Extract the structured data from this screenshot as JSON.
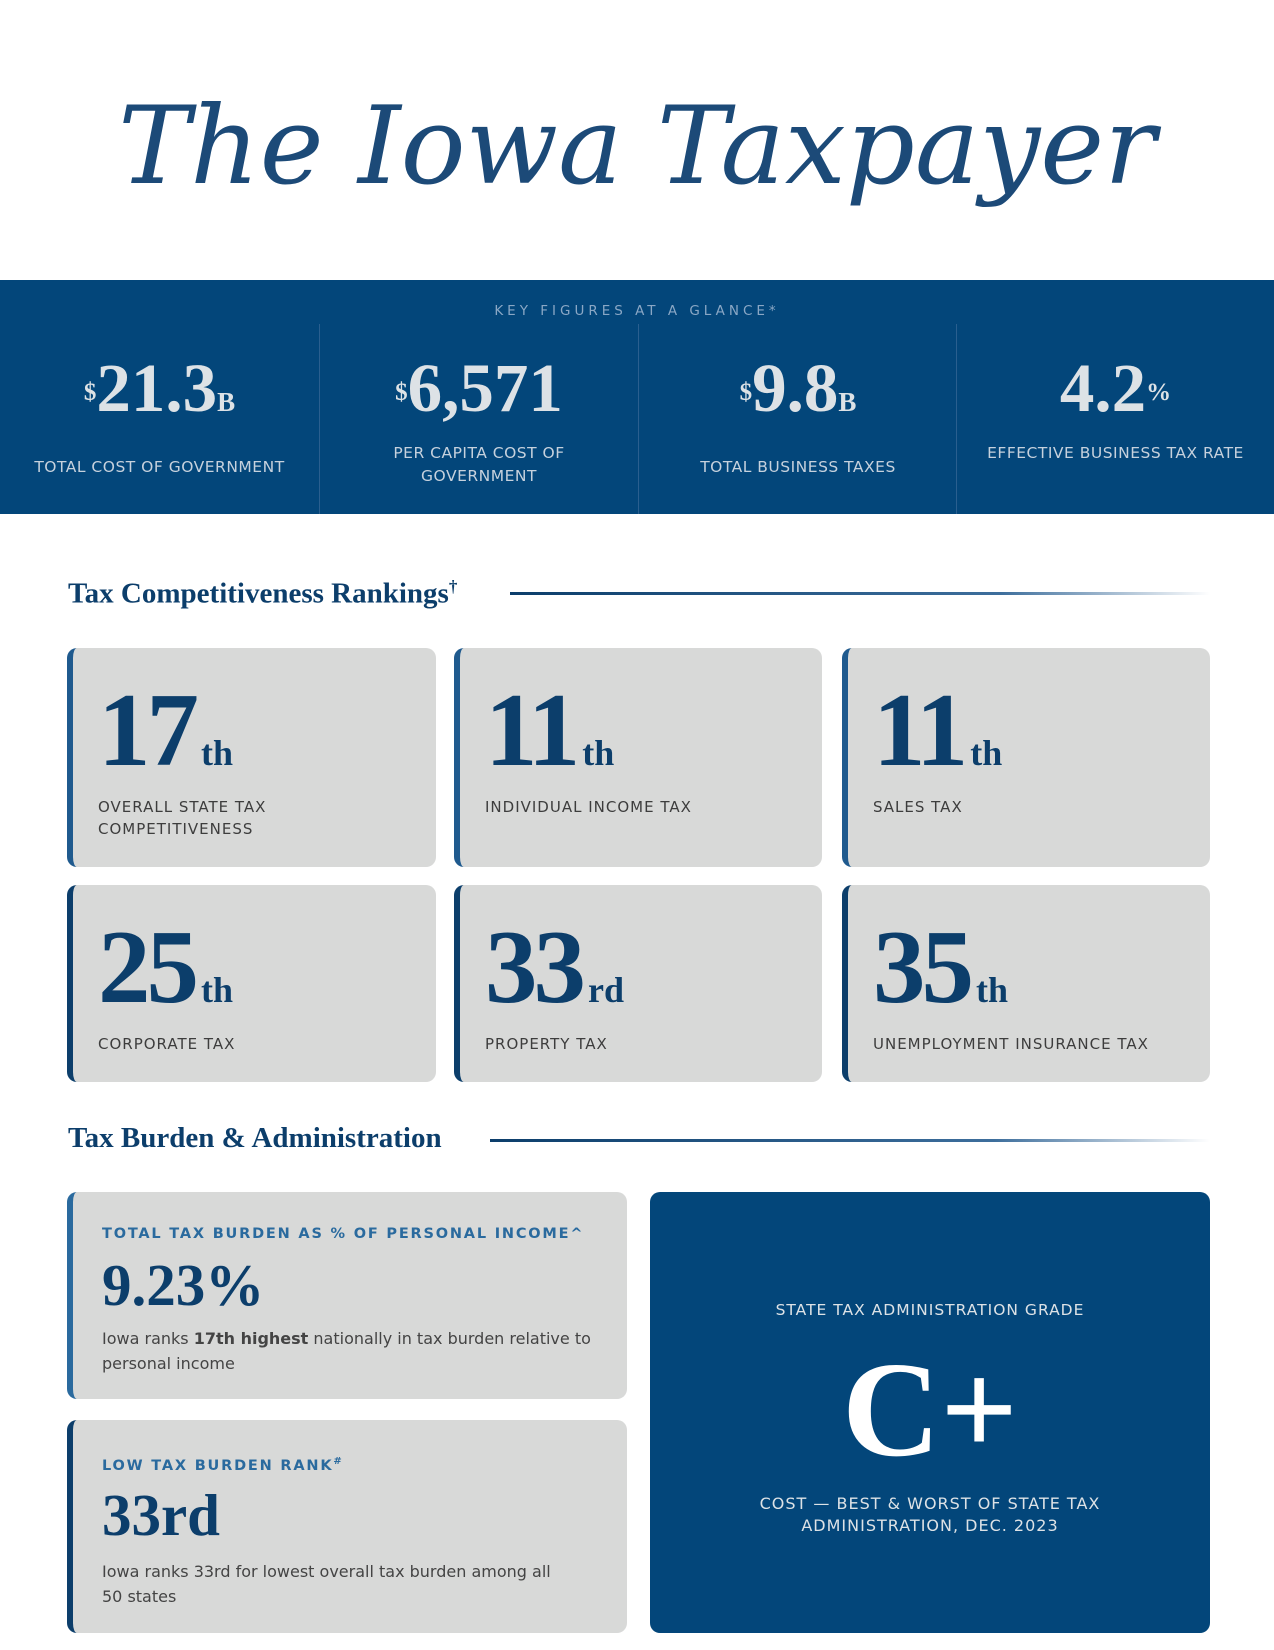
{
  "masthead": "The Iowa Taxpayer",
  "key_figures": {
    "title": "KEY FIGURES AT A GLANCE*",
    "items": [
      {
        "prefix": "$",
        "value": "21.3",
        "suffix": "B",
        "label": "TOTAL COST OF GOVERNMENT"
      },
      {
        "prefix": "$",
        "value": "6,571",
        "suffix": "",
        "label": "PER CAPITA COST OF GOVERNMENT"
      },
      {
        "prefix": "$",
        "value": "9.8",
        "suffix": "B",
        "label": "TOTAL BUSINESS TAXES"
      },
      {
        "prefix": "",
        "value": "4.2",
        "suffix": "%",
        "label": "EFFECTIVE BUSINESS TAX RATE"
      }
    ]
  },
  "rankings": {
    "title": "Tax Competitiveness Rankings",
    "title_mark": "†",
    "items": [
      {
        "rank": "17",
        "ordinal": "th",
        "label": "OVERALL STATE TAX COMPETITIVENESS"
      },
      {
        "rank": "11",
        "ordinal": "th",
        "label": "INDIVIDUAL INCOME TAX"
      },
      {
        "rank": "11",
        "ordinal": "th",
        "label": "SALES TAX"
      },
      {
        "rank": "25",
        "ordinal": "th",
        "label": "CORPORATE TAX"
      },
      {
        "rank": "33",
        "ordinal": "rd",
        "label": "PROPERTY TAX"
      },
      {
        "rank": "35",
        "ordinal": "th",
        "label": "UNEMPLOYMENT INSURANCE TAX"
      }
    ]
  },
  "burden": {
    "title": "Tax Burden & Administration",
    "total": {
      "heading": "TOTAL TAX BURDEN AS % OF PERSONAL INCOME^",
      "value": "9.23%",
      "desc_pre": "Iowa ranks ",
      "desc_bold": "17th highest",
      "desc_post": " nationally in tax burden relative to personal income"
    },
    "low": {
      "heading": "LOW TAX BURDEN RANK",
      "heading_mark": "#",
      "value": "33rd",
      "desc": "Iowa ranks 33rd for lowest overall tax burden among all 50 states"
    },
    "grade": {
      "heading": "STATE TAX ADMINISTRATION GRADE",
      "value": "C+",
      "source": "COST — BEST & WORST OF STATE TAX ADMINISTRATION, DEC. 2023"
    }
  },
  "colors": {
    "brand_blue": "#03467a",
    "card_gray": "#d8d9d8",
    "heading_blue": "#0c3e6b"
  }
}
